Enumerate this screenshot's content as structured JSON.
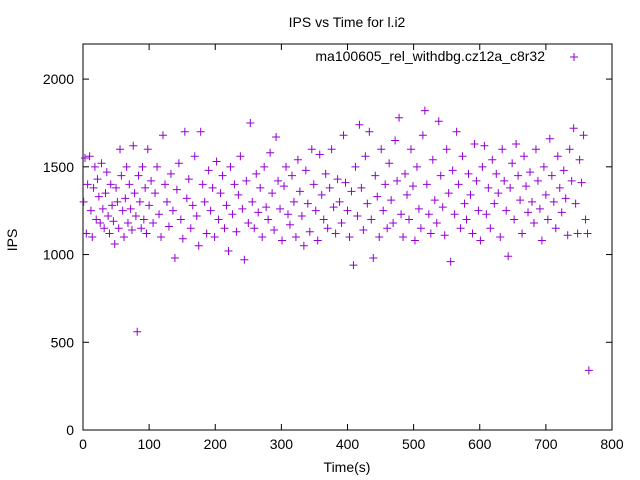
{
  "chart_data": {
    "type": "scatter",
    "title": "IPS vs Time for l.i2",
    "xlabel": "Time(s)",
    "ylabel": "IPS",
    "xlim": [
      0,
      800
    ],
    "ylim": [
      0,
      2200
    ],
    "xticks": [
      0,
      100,
      200,
      300,
      400,
      500,
      600,
      700,
      800
    ],
    "yticks": [
      0,
      500,
      1000,
      1500,
      2000
    ],
    "legend_position": "top-right",
    "marker": "plus",
    "color": "#9400d3",
    "series": [
      {
        "name": "ma100605_rel_withdbg.cz12a_c8r32",
        "points": [
          [
            1,
            1300
          ],
          [
            3,
            1550
          ],
          [
            5,
            1120
          ],
          [
            7,
            1400
          ],
          [
            10,
            1560
          ],
          [
            12,
            1250
          ],
          [
            14,
            1100
          ],
          [
            16,
            1380
          ],
          [
            18,
            1500
          ],
          [
            20,
            1200
          ],
          [
            22,
            1430
          ],
          [
            24,
            1330
          ],
          [
            26,
            1180
          ],
          [
            28,
            1520
          ],
          [
            30,
            1260
          ],
          [
            32,
            1150
          ],
          [
            34,
            1350
          ],
          [
            36,
            1470
          ],
          [
            38,
            1220
          ],
          [
            40,
            1120
          ],
          [
            42,
            1400
          ],
          [
            44,
            1280
          ],
          [
            46,
            1190
          ],
          [
            48,
            1060
          ],
          [
            50,
            1380
          ],
          [
            52,
            1300
          ],
          [
            54,
            1150
          ],
          [
            56,
            1600
          ],
          [
            58,
            1450
          ],
          [
            60,
            1250
          ],
          [
            62,
            1100
          ],
          [
            64,
            1320
          ],
          [
            66,
            1500
          ],
          [
            68,
            1180
          ],
          [
            70,
            1400
          ],
          [
            72,
            1260
          ],
          [
            74,
            1140
          ],
          [
            76,
            1620
          ],
          [
            78,
            1350
          ],
          [
            80,
            1220
          ],
          [
            82,
            560
          ],
          [
            84,
            1450
          ],
          [
            86,
            1300
          ],
          [
            88,
            1150
          ],
          [
            90,
            1500
          ],
          [
            92,
            1200
          ],
          [
            94,
            1380
          ],
          [
            96,
            1120
          ],
          [
            98,
            1600
          ],
          [
            100,
            1280
          ],
          [
            103,
            1420
          ],
          [
            106,
            1180
          ],
          [
            109,
            1350
          ],
          [
            112,
            1500
          ],
          [
            115,
            1230
          ],
          [
            118,
            1100
          ],
          [
            121,
            1680
          ],
          [
            124,
            1400
          ],
          [
            127,
            1300
          ],
          [
            130,
            1160
          ],
          [
            133,
            1460
          ],
          [
            136,
            1250
          ],
          [
            139,
            980
          ],
          [
            142,
            1370
          ],
          [
            145,
            1520
          ],
          [
            148,
            1200
          ],
          [
            151,
            1090
          ],
          [
            154,
            1700
          ],
          [
            157,
            1320
          ],
          [
            160,
            1430
          ],
          [
            163,
            1150
          ],
          [
            166,
            1280
          ],
          [
            169,
            1560
          ],
          [
            172,
            1220
          ],
          [
            175,
            1050
          ],
          [
            178,
            1700
          ],
          [
            181,
            1400
          ],
          [
            184,
            1300
          ],
          [
            187,
            1120
          ],
          [
            190,
            1480
          ],
          [
            193,
            1250
          ],
          [
            196,
            1380
          ],
          [
            199,
            1100
          ],
          [
            202,
            1530
          ],
          [
            205,
            1200
          ],
          [
            208,
            1350
          ],
          [
            211,
            1450
          ],
          [
            214,
            1150
          ],
          [
            217,
            1280
          ],
          [
            220,
            1020
          ],
          [
            223,
            1500
          ],
          [
            226,
            1230
          ],
          [
            229,
            1400
          ],
          [
            232,
            1130
          ],
          [
            235,
            1340
          ],
          [
            238,
            1560
          ],
          [
            241,
            1260
          ],
          [
            244,
            970
          ],
          [
            247,
            1420
          ],
          [
            250,
            1180
          ],
          [
            253,
            1750
          ],
          [
            256,
            1300
          ],
          [
            259,
            1150
          ],
          [
            262,
            1460
          ],
          [
            265,
            1240
          ],
          [
            268,
            1380
          ],
          [
            271,
            1100
          ],
          [
            274,
            1500
          ],
          [
            277,
            1270
          ],
          [
            280,
            1200
          ],
          [
            283,
            1580
          ],
          [
            286,
            1350
          ],
          [
            289,
            1140
          ],
          [
            292,
            1670
          ],
          [
            295,
            1420
          ],
          [
            298,
            1260
          ],
          [
            301,
            1080
          ],
          [
            304,
            1390
          ],
          [
            307,
            1500
          ],
          [
            310,
            1230
          ],
          [
            313,
            1170
          ],
          [
            316,
            1450
          ],
          [
            319,
            1300
          ],
          [
            322,
            1100
          ],
          [
            325,
            1540
          ],
          [
            328,
            1360
          ],
          [
            331,
            1220
          ],
          [
            334,
            1050
          ],
          [
            337,
            1480
          ],
          [
            340,
            1290
          ],
          [
            343,
            1130
          ],
          [
            346,
            1600
          ],
          [
            349,
            1400
          ],
          [
            352,
            1250
          ],
          [
            355,
            1080
          ],
          [
            358,
            1570
          ],
          [
            361,
            1340
          ],
          [
            364,
            1200
          ],
          [
            367,
            1460
          ],
          [
            370,
            1150
          ],
          [
            373,
            1380
          ],
          [
            376,
            1600
          ],
          [
            379,
            1270
          ],
          [
            382,
            1120
          ],
          [
            385,
            1430
          ],
          [
            388,
            1300
          ],
          [
            391,
            1180
          ],
          [
            394,
            1680
          ],
          [
            397,
            1410
          ],
          [
            400,
            1250
          ],
          [
            403,
            1100
          ],
          [
            406,
            1360
          ],
          [
            409,
            940
          ],
          [
            412,
            1500
          ],
          [
            415,
            1220
          ],
          [
            418,
            1740
          ],
          [
            421,
            1380
          ],
          [
            424,
            1140
          ],
          [
            427,
            1560
          ],
          [
            430,
            1290
          ],
          [
            433,
            1700
          ],
          [
            436,
            1200
          ],
          [
            439,
            980
          ],
          [
            442,
            1450
          ],
          [
            445,
            1330
          ],
          [
            448,
            1100
          ],
          [
            451,
            1600
          ],
          [
            454,
            1250
          ],
          [
            457,
            1400
          ],
          [
            460,
            1150
          ],
          [
            463,
            1520
          ],
          [
            466,
            1310
          ],
          [
            469,
            1180
          ],
          [
            472,
            1650
          ],
          [
            475,
            1420
          ],
          [
            478,
            1780
          ],
          [
            481,
            1230
          ],
          [
            484,
            1100
          ],
          [
            487,
            1460
          ],
          [
            490,
            1340
          ],
          [
            493,
            1200
          ],
          [
            496,
            1600
          ],
          [
            499,
            1390
          ],
          [
            502,
            1080
          ],
          [
            505,
            1500
          ],
          [
            508,
            1260
          ],
          [
            511,
            1150
          ],
          [
            514,
            1680
          ],
          [
            517,
            1820
          ],
          [
            520,
            1400
          ],
          [
            523,
            1230
          ],
          [
            526,
            1120
          ],
          [
            529,
            1540
          ],
          [
            532,
            1310
          ],
          [
            535,
            1180
          ],
          [
            538,
            1760
          ],
          [
            541,
            1450
          ],
          [
            544,
            1270
          ],
          [
            547,
            1110
          ],
          [
            550,
            1600
          ],
          [
            553,
            1350
          ],
          [
            556,
            960
          ],
          [
            559,
            1480
          ],
          [
            562,
            1230
          ],
          [
            565,
            1700
          ],
          [
            568,
            1400
          ],
          [
            571,
            1150
          ],
          [
            574,
            1560
          ],
          [
            577,
            1290
          ],
          [
            580,
            1200
          ],
          [
            583,
            1460
          ],
          [
            586,
            1340
          ],
          [
            589,
            1120
          ],
          [
            592,
            1630
          ],
          [
            595,
            1420
          ],
          [
            598,
            1250
          ],
          [
            601,
            1080
          ],
          [
            604,
            1500
          ],
          [
            607,
            1620
          ],
          [
            610,
            1230
          ],
          [
            613,
            1380
          ],
          [
            616,
            1150
          ],
          [
            619,
            1540
          ],
          [
            622,
            1290
          ],
          [
            625,
            1460
          ],
          [
            628,
            1350
          ],
          [
            631,
            1100
          ],
          [
            634,
            1600
          ],
          [
            637,
            1420
          ],
          [
            640,
            1250
          ],
          [
            643,
            990
          ],
          [
            646,
            1380
          ],
          [
            649,
            1520
          ],
          [
            652,
            1200
          ],
          [
            655,
            1630
          ],
          [
            658,
            1450
          ],
          [
            661,
            1310
          ],
          [
            664,
            1120
          ],
          [
            667,
            1560
          ],
          [
            670,
            1390
          ],
          [
            673,
            1240
          ],
          [
            676,
            1470
          ],
          [
            679,
            1300
          ],
          [
            682,
            1180
          ],
          [
            685,
            1600
          ],
          [
            688,
            1420
          ],
          [
            691,
            1260
          ],
          [
            694,
            1080
          ],
          [
            697,
            1500
          ],
          [
            700,
            1340
          ],
          [
            703,
            1200
          ],
          [
            706,
            1660
          ],
          [
            709,
            1450
          ],
          [
            712,
            1300
          ],
          [
            715,
            1150
          ],
          [
            718,
            1560
          ],
          [
            721,
            1380
          ],
          [
            724,
            1240
          ],
          [
            727,
            1480
          ],
          [
            730,
            1320
          ],
          [
            733,
            1110
          ],
          [
            736,
            1600
          ],
          [
            739,
            1420
          ],
          [
            742,
            1720
          ],
          [
            745,
            1290
          ],
          [
            748,
            1120
          ],
          [
            751,
            1540
          ],
          [
            754,
            1410
          ],
          [
            757,
            1680
          ],
          [
            760,
            1200
          ],
          [
            763,
            1120
          ],
          [
            765,
            340
          ]
        ]
      }
    ]
  }
}
